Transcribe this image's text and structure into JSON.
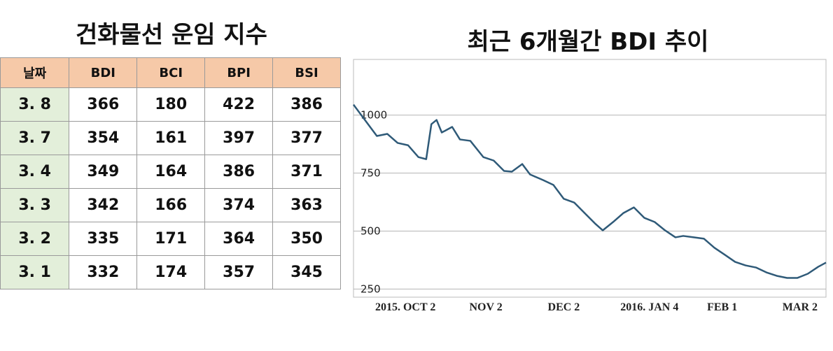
{
  "table": {
    "title": "건화물선 운임 지수",
    "header": [
      "날짜",
      "BDI",
      "BCI",
      "BPI",
      "BSI"
    ],
    "rows": [
      [
        "3. 8",
        "366",
        "180",
        "422",
        "386"
      ],
      [
        "3. 7",
        "354",
        "161",
        "397",
        "377"
      ],
      [
        "3. 4",
        "349",
        "164",
        "386",
        "371"
      ],
      [
        "3. 3",
        "342",
        "166",
        "374",
        "363"
      ],
      [
        "3. 2",
        "335",
        "171",
        "364",
        "350"
      ],
      [
        "3. 1",
        "332",
        "174",
        "357",
        "345"
      ]
    ]
  },
  "chart_data": {
    "type": "line",
    "title": "최근 6개월간 BDI 추이",
    "x": [
      -20,
      -16,
      -11,
      -7,
      -3,
      1,
      5,
      8,
      10,
      12,
      14,
      18,
      21,
      25,
      30,
      34,
      38,
      41,
      45,
      48,
      53,
      57,
      61,
      65,
      69,
      73,
      76,
      80,
      84,
      88,
      92,
      96,
      100,
      104,
      107,
      111,
      115,
      119,
      123,
      127,
      131,
      135,
      139,
      143,
      147,
      151,
      155,
      159,
      162
    ],
    "values": [
      1045,
      985,
      910,
      919,
      880,
      870,
      819,
      810,
      961,
      979,
      925,
      949,
      895,
      889,
      819,
      804,
      759,
      756,
      789,
      744,
      720,
      699,
      639,
      623,
      578,
      533,
      503,
      539,
      578,
      602,
      557,
      539,
      503,
      473,
      479,
      473,
      467,
      428,
      398,
      367,
      352,
      343,
      322,
      307,
      298,
      298,
      316,
      346,
      364
    ],
    "color": "#2f5a78",
    "xlim": [
      -20,
      162
    ],
    "xticks": [
      {
        "value": 0,
        "label": "2015. OCT 2"
      },
      {
        "value": 31,
        "label": "NOV 2"
      },
      {
        "value": 61,
        "label": "DEC 2"
      },
      {
        "value": 94,
        "label": "2016.  JAN 4"
      },
      {
        "value": 122,
        "label": "FEB 1"
      },
      {
        "value": 152,
        "label": "MAR 2"
      }
    ],
    "ylim": [
      215,
      1240
    ],
    "yticks": [
      1000,
      750,
      500,
      250
    ],
    "grid": true
  }
}
